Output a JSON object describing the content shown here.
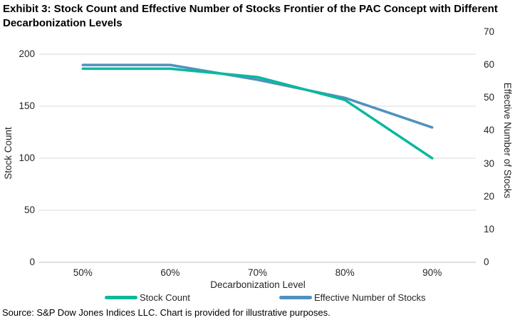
{
  "title": "Exhibit 3: Stock Count and Effective Number of Stocks Frontier of the PAC Concept with Different Decarbonization Levels",
  "source": "Source: S&P Dow Jones Indices LLC. Chart is provided for illustrative purposes.",
  "chart_data": {
    "type": "line",
    "title": "Exhibit 3: Stock Count and Effective Number of Stocks Frontier of the PAC Concept with Different Decarbonization Levels",
    "categories": [
      "50%",
      "60%",
      "70%",
      "80%",
      "90%"
    ],
    "xlabel": "Decarbonization Level",
    "grid": "horizontal",
    "legend_position": "bottom",
    "axes": {
      "left": {
        "label": "Stock Count",
        "ticks": [
          0,
          50,
          100,
          150,
          200
        ],
        "range": [
          0,
          200
        ]
      },
      "right": {
        "label": "Effective Number of Stocks",
        "ticks": [
          0,
          10,
          20,
          30,
          40,
          50,
          60,
          70
        ],
        "range": [
          0,
          70
        ]
      }
    },
    "series": [
      {
        "name": "Stock Count",
        "axis": "left",
        "color": "#0bb99b",
        "values": [
          186,
          186,
          178,
          156,
          100
        ]
      },
      {
        "name": "Effective Number of Stocks",
        "axis": "right",
        "color": "#4f91bf",
        "values": [
          60,
          60,
          55.5,
          50,
          41
        ]
      }
    ],
    "colors": {
      "gridline": "#d9d9d9",
      "axis_line": "#bfbfbf",
      "text": "#262626"
    }
  }
}
